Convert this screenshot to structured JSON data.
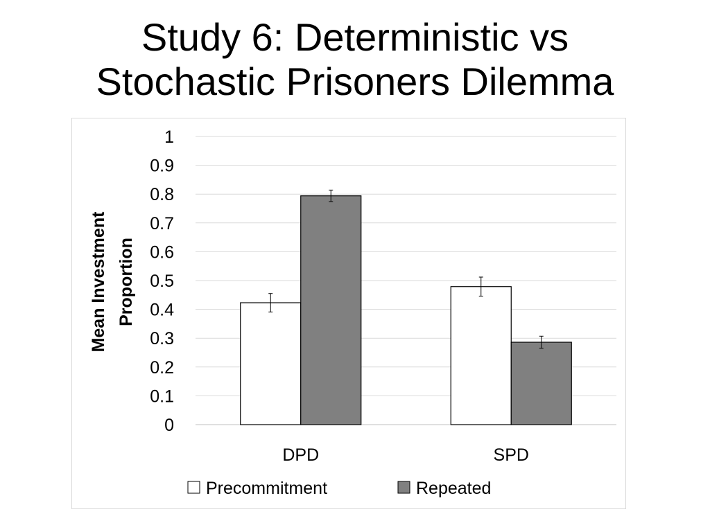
{
  "slide": {
    "title_line1": "Study 6: Deterministic vs",
    "title_line2": "Stochastic Prisoners Dilemma"
  },
  "chart_data": {
    "type": "bar",
    "categories": [
      "DPD",
      "SPD"
    ],
    "series": [
      {
        "name": "Precommitment",
        "values": [
          0.423,
          0.479
        ],
        "error": [
          0.032,
          0.033
        ],
        "color": "#ffffff"
      },
      {
        "name": "Repeated",
        "values": [
          0.794,
          0.286
        ],
        "error": [
          0.02,
          0.021
        ],
        "color": "#808080"
      }
    ],
    "ylabel_line1": "Mean Investment",
    "ylabel_line2": "Proportion",
    "ylim": [
      0,
      1
    ],
    "yticks": [
      "0",
      "0.1",
      "0.2",
      "0.3",
      "0.4",
      "0.5",
      "0.6",
      "0.7",
      "0.8",
      "0.9",
      "1"
    ],
    "grid": true,
    "legend": "bottom"
  }
}
